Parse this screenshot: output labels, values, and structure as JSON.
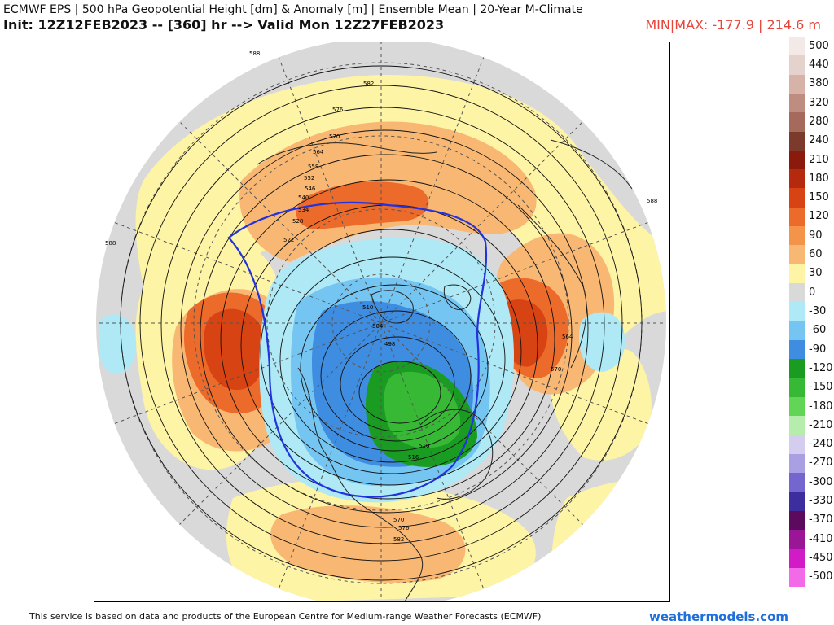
{
  "header": {
    "title_line1": "ECMWF EPS | 500 hPa Geopotential Height [dm] & Anomaly [m] | Ensemble Mean | 20-Year M-Climate",
    "title_line2": "Init: 12Z12FEB2023 -- [360] hr --> Valid Mon 12Z27FEB2023",
    "minmax": "MIN|MAX: -177.9 | 214.6 m"
  },
  "footer": {
    "credit": "This service is based on data and products of the European Centre for Medium-range Weather Forecasts (ECMWF)",
    "brand": "weathermodels.com"
  },
  "colorbar": {
    "levels": [
      {
        "label": "500",
        "color": "#f3e9e6"
      },
      {
        "label": "440",
        "color": "#e6d2cc"
      },
      {
        "label": "380",
        "color": "#d6b2a8"
      },
      {
        "label": "320",
        "color": "#bf8d80"
      },
      {
        "label": "280",
        "color": "#a56a5b"
      },
      {
        "label": "240",
        "color": "#7c3a2c"
      },
      {
        "label": "210",
        "color": "#8a1a0c"
      },
      {
        "label": "180",
        "color": "#b52a0e"
      },
      {
        "label": "150",
        "color": "#d84313"
      },
      {
        "label": "120",
        "color": "#ec6a2a"
      },
      {
        "label": "90",
        "color": "#f4934a"
      },
      {
        "label": "60",
        "color": "#f8b873"
      },
      {
        "label": "30",
        "color": "#fdf4a6"
      },
      {
        "label": "0",
        "color": "#d9d9d9"
      },
      {
        "label": "-30",
        "color": "#aee9f5"
      },
      {
        "label": "-60",
        "color": "#74c5f2"
      },
      {
        "label": "-90",
        "color": "#3f8de0"
      },
      {
        "label": "-120",
        "color": "#1a9b22"
      },
      {
        "label": "-150",
        "color": "#37b935"
      },
      {
        "label": "-180",
        "color": "#62d456"
      },
      {
        "label": "-210",
        "color": "#b6ecac"
      },
      {
        "label": "-240",
        "color": "#d5cdef"
      },
      {
        "label": "-270",
        "color": "#a8a0e2"
      },
      {
        "label": "-300",
        "color": "#7466cf"
      },
      {
        "label": "-330",
        "color": "#3d2e9f"
      },
      {
        "label": "-370",
        "color": "#5c0a5e"
      },
      {
        "label": "-410",
        "color": "#9b1696"
      },
      {
        "label": "-450",
        "color": "#d01bc7"
      },
      {
        "label": "-500",
        "color": "#f36ae8"
      }
    ]
  },
  "map": {
    "projection": "north-polar-stereographic",
    "contour_labels": [
      "588",
      "582",
      "576",
      "570",
      "564",
      "558",
      "552",
      "546",
      "540",
      "534",
      "528",
      "522",
      "510",
      "504",
      "498",
      "510",
      "516",
      "570",
      "576",
      "582",
      "564",
      "570",
      "588",
      "588"
    ],
    "anomaly_colors": {
      "positive_weak": "#fdf4a6",
      "positive_mod": "#f8b873",
      "positive_strong": "#ec6a2a",
      "positive_max": "#d84313",
      "neutral": "#d9d9d9",
      "negative_weak": "#aee9f5",
      "negative_mod": "#74c5f2",
      "negative_strong": "#3f8de0",
      "negative_max": "#1a9b22",
      "negative_extreme": "#37b935"
    }
  }
}
